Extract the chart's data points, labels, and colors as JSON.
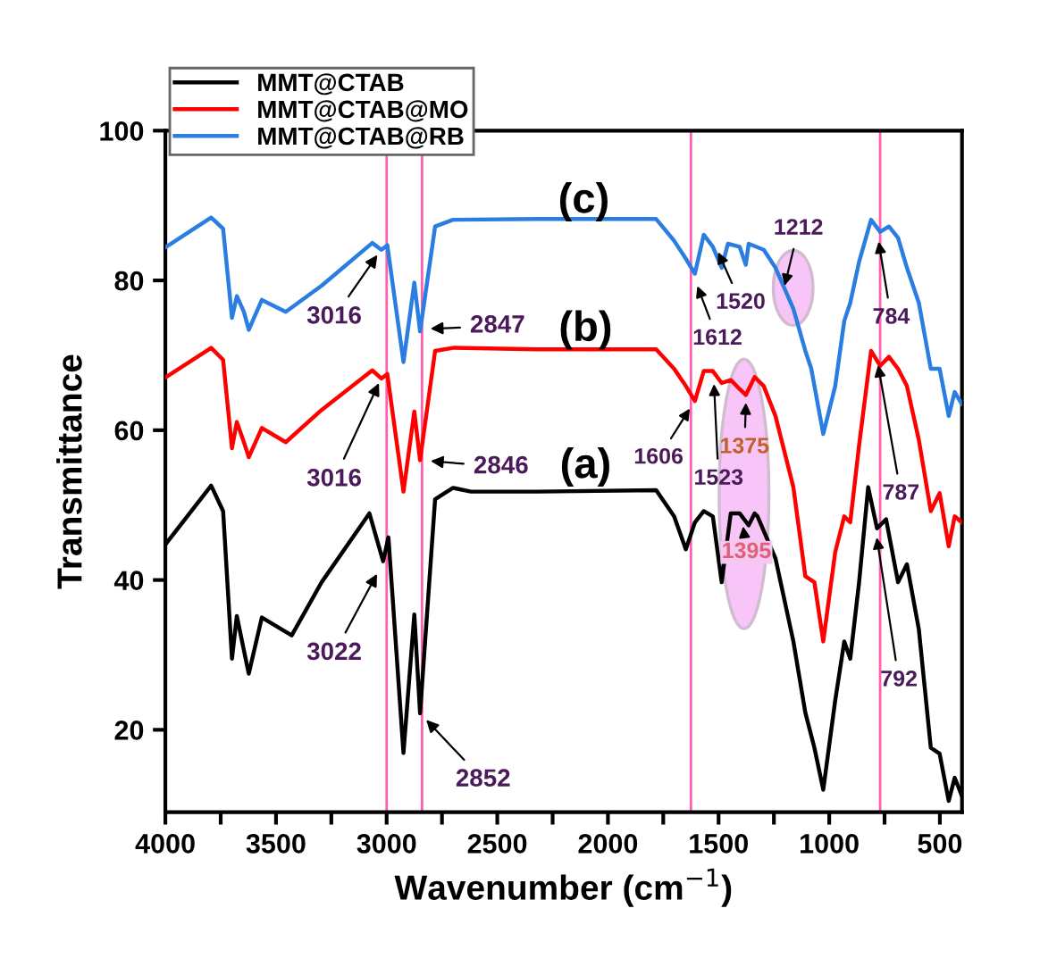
{
  "chart_data": {
    "type": "line",
    "xlabel": "Wavenumber (cm$^{−1}$)",
    "ylabel": "Transmittance",
    "xlim": [
      4000,
      400
    ],
    "ylim": [
      9,
      100
    ],
    "xticks": [
      4000,
      {
        "value": 3750,
        "label": null
      },
      3500,
      {
        "value": 3250,
        "label": null
      },
      3000,
      {
        "value": 2750,
        "label": null
      },
      2500,
      {
        "value": 2250,
        "label": null
      },
      2000,
      {
        "value": 1750,
        "label": null
      },
      1500,
      {
        "value": 1250,
        "label": null
      },
      1000,
      {
        "value": 750,
        "label": null
      },
      500
    ],
    "yticks": [
      20,
      40,
      60,
      80,
      100
    ],
    "grid": false,
    "legend": "top left",
    "marker": "none",
    "line_style": "solid",
    "series": [
      {
        "name": "MMT@CTAB",
        "color": "#000000",
        "x": [
          3996,
          3793,
          3739,
          3699,
          3677,
          3645,
          3623,
          3564,
          3429,
          3294,
          3078,
          3016,
          2992,
          2924,
          2875,
          2849,
          2781,
          2700,
          2619,
          2322,
          1782,
          1701,
          1648,
          1607,
          1567,
          1526,
          1486,
          1445,
          1405,
          1364,
          1337,
          1324,
          1243,
          1162,
          1108,
          1067,
          1027,
          973,
          932,
          905,
          865,
          824,
          784,
          743,
          689,
          649,
          595,
          541,
          501,
          460,
          433,
          401
        ],
        "values": [
          44.9,
          52.6,
          49.2,
          29.5,
          35.2,
          30.6,
          27.5,
          35.0,
          32.6,
          39.7,
          48.9,
          42.5,
          45.7,
          16.9,
          35.4,
          22.2,
          50.8,
          52.3,
          51.8,
          51.8,
          52.0,
          48.5,
          44.1,
          47.7,
          49.2,
          48.5,
          39.7,
          48.9,
          48.9,
          47.3,
          48.9,
          48.5,
          42.9,
          31.8,
          22.3,
          17.6,
          12.0,
          23.9,
          31.8,
          29.5,
          39.7,
          52.4,
          46.9,
          48.1,
          39.7,
          42.1,
          33.4,
          17.6,
          16.8,
          10.5,
          13.6,
          11.2
        ]
      },
      {
        "name": "MMT@CTAB@MO",
        "color": "#ff0000",
        "x": [
          3996,
          3793,
          3739,
          3699,
          3677,
          3645,
          3623,
          3564,
          3456,
          3294,
          3065,
          3024,
          2997,
          2924,
          2875,
          2849,
          2781,
          2700,
          2322,
          1782,
          1701,
          1648,
          1607,
          1567,
          1526,
          1486,
          1445,
          1405,
          1377,
          1337,
          1296,
          1243,
          1162,
          1108,
          1067,
          1027,
          973,
          932,
          905,
          865,
          811,
          770,
          730,
          689,
          649,
          595,
          541,
          501,
          460,
          433,
          401
        ],
        "values": [
          67.1,
          71.0,
          69.4,
          57.6,
          61.1,
          58.4,
          56.4,
          60.3,
          58.4,
          62.7,
          68.0,
          66.9,
          67.5,
          51.8,
          62.5,
          56.0,
          70.6,
          71.0,
          70.8,
          70.8,
          68.2,
          65.9,
          63.9,
          67.9,
          67.9,
          66.3,
          66.7,
          65.5,
          64.7,
          67.1,
          65.9,
          61.9,
          52.4,
          40.5,
          39.7,
          31.8,
          43.7,
          48.5,
          47.7,
          58.0,
          70.6,
          68.6,
          69.8,
          68.2,
          65.9,
          58.7,
          49.2,
          51.6,
          44.5,
          48.5,
          47.7
        ]
      },
      {
        "name": "MMT@CTAB@RB",
        "color": "#2a7de1",
        "x": [
          3996,
          3793,
          3739,
          3699,
          3677,
          3645,
          3623,
          3564,
          3456,
          3294,
          3065,
          3024,
          2997,
          2924,
          2875,
          2849,
          2781,
          2700,
          2322,
          1782,
          1701,
          1648,
          1607,
          1567,
          1526,
          1486,
          1458,
          1405,
          1377,
          1364,
          1296,
          1243,
          1162,
          1108,
          1081,
          1027,
          973,
          932,
          905,
          865,
          811,
          770,
          730,
          689,
          649,
          595,
          541,
          501,
          460,
          433,
          401
        ],
        "values": [
          84.5,
          88.4,
          86.9,
          75.0,
          77.9,
          75.8,
          73.4,
          77.4,
          75.8,
          79.3,
          85.0,
          84.1,
          84.7,
          69.1,
          79.7,
          73.2,
          87.2,
          88.1,
          88.2,
          88.2,
          85.3,
          82.9,
          80.9,
          86.1,
          84.5,
          81.7,
          84.9,
          84.5,
          82.1,
          84.9,
          84.1,
          81.7,
          76.2,
          70.6,
          68.2,
          59.5,
          65.9,
          74.6,
          77.0,
          82.5,
          88.1,
          86.5,
          87.2,
          85.7,
          81.7,
          77.0,
          68.2,
          68.2,
          61.9,
          65.1,
          63.5
        ]
      }
    ],
    "ref_lines": [
      {
        "axis": "x",
        "value": 3000,
        "label": null,
        "color": "#ff5fb0"
      },
      {
        "axis": "x",
        "value": 2840,
        "label": null,
        "color": "#ff5fb0"
      },
      {
        "axis": "x",
        "value": 1625,
        "label": null,
        "color": "#ff5fb0"
      },
      {
        "axis": "x",
        "value": 770,
        "label": null,
        "color": "#ff5fb0"
      }
    ],
    "annotations": [
      "(c)",
      "(b)",
      "(a)",
      {
        "text": "3016",
        "x": 3016,
        "y": 84.5
      },
      {
        "text": "2847",
        "x": 2847,
        "y": 73.5
      },
      {
        "text": "3016",
        "x": 3016,
        "y": 67.5
      },
      {
        "text": "2846",
        "x": 2846,
        "y": 56
      },
      {
        "text": "3022",
        "x": 3022,
        "y": 42.0
      },
      {
        "text": "2852",
        "x": 2852,
        "y": 22.3
      },
      {
        "text": "1612",
        "x": 1612,
        "y": 80.5
      },
      {
        "text": "1520",
        "x": 1520,
        "y": 85
      },
      {
        "text": "1212",
        "x": 1212,
        "y": 78
      },
      {
        "text": "1606",
        "x": 1606,
        "y": 64
      },
      {
        "text": "1523",
        "x": 1523,
        "y": 67.5
      },
      {
        "text": "1375",
        "x": 1375,
        "y": 65
      },
      {
        "text": "1395",
        "x": 1395,
        "y": 48.5
      },
      {
        "text": "784",
        "x": 784,
        "y": 86.5
      },
      {
        "text": "787",
        "x": 787,
        "y": 70
      },
      {
        "text": "792",
        "x": 792,
        "y": 47
      }
    ]
  }
}
